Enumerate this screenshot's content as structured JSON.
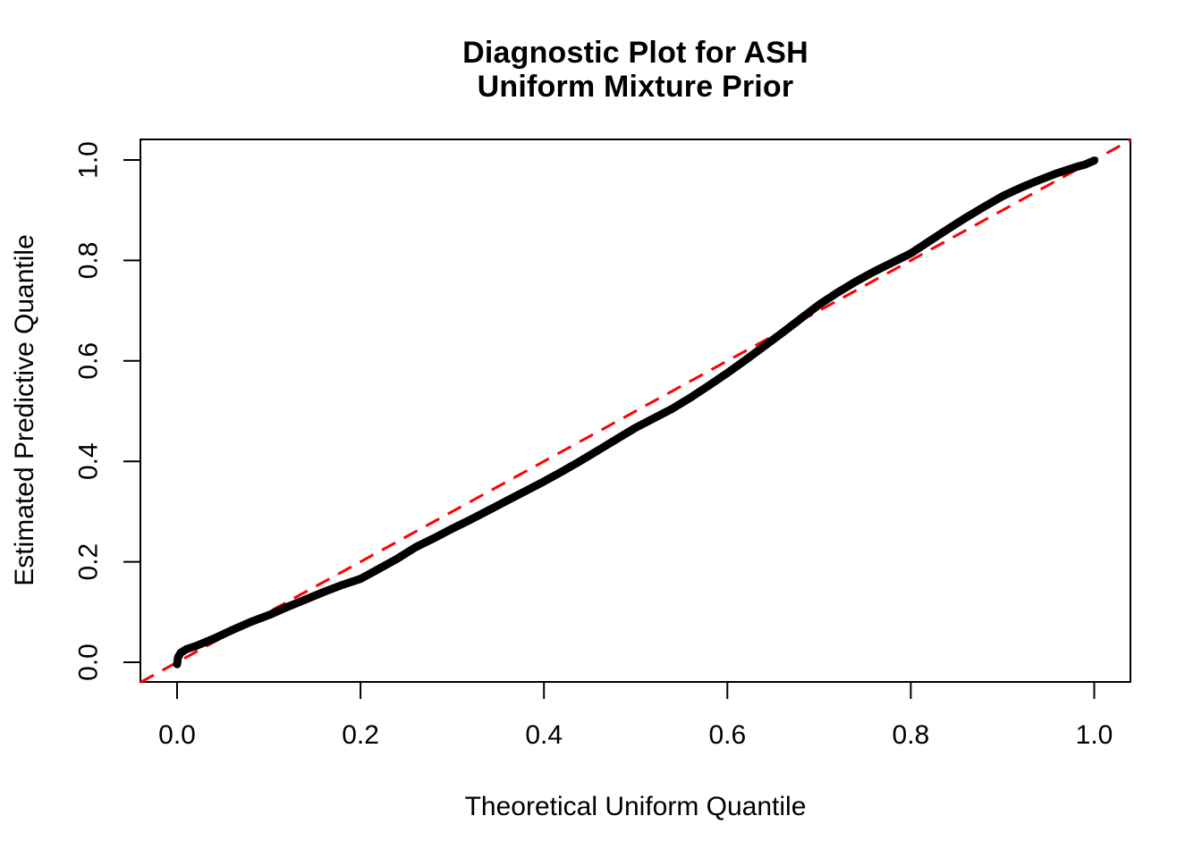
{
  "figure": {
    "background": "#ffffff",
    "curve_color": "#000000",
    "reference_line_color": "#FF0000",
    "axis_color": "#000000"
  },
  "chart_data": {
    "type": "line",
    "title_lines": [
      "Diagnostic Plot for ASH",
      "Uniform Mixture Prior"
    ],
    "xlabel": "Theoretical Uniform Quantile",
    "ylabel": "Estimated Predictive Quantile",
    "xlim": [
      -0.04,
      1.04
    ],
    "ylim": [
      -0.04,
      1.04
    ],
    "grid": false,
    "legend": "none",
    "x_ticks": [
      0.0,
      0.2,
      0.4,
      0.6,
      0.8,
      1.0
    ],
    "x_tick_labels": [
      "0.0",
      "0.2",
      "0.4",
      "0.6",
      "0.8",
      "1.0"
    ],
    "y_ticks": [
      0.0,
      0.2,
      0.4,
      0.6,
      0.8,
      1.0
    ],
    "y_tick_labels": [
      "0.0",
      "0.2",
      "0.4",
      "0.6",
      "0.8",
      "1.0"
    ],
    "series": [
      {
        "name": "estimated-predictive-quantiles",
        "type": "line",
        "style": "solid-thick",
        "color": "#000000",
        "points": [
          [
            0.0,
            -0.004
          ],
          [
            0.001,
            0.01
          ],
          [
            0.004,
            0.019
          ],
          [
            0.01,
            0.026
          ],
          [
            0.02,
            0.032
          ],
          [
            0.04,
            0.047
          ],
          [
            0.06,
            0.064
          ],
          [
            0.08,
            0.08
          ],
          [
            0.1,
            0.094
          ],
          [
            0.12,
            0.11
          ],
          [
            0.14,
            0.125
          ],
          [
            0.16,
            0.14
          ],
          [
            0.18,
            0.154
          ],
          [
            0.2,
            0.166
          ],
          [
            0.22,
            0.186
          ],
          [
            0.24,
            0.206
          ],
          [
            0.26,
            0.229
          ],
          [
            0.28,
            0.247
          ],
          [
            0.3,
            0.266
          ],
          [
            0.32,
            0.284
          ],
          [
            0.34,
            0.303
          ],
          [
            0.36,
            0.322
          ],
          [
            0.38,
            0.341
          ],
          [
            0.4,
            0.36
          ],
          [
            0.42,
            0.38
          ],
          [
            0.44,
            0.401
          ],
          [
            0.46,
            0.423
          ],
          [
            0.48,
            0.445
          ],
          [
            0.5,
            0.467
          ],
          [
            0.52,
            0.486
          ],
          [
            0.54,
            0.505
          ],
          [
            0.56,
            0.527
          ],
          [
            0.58,
            0.551
          ],
          [
            0.6,
            0.576
          ],
          [
            0.62,
            0.602
          ],
          [
            0.64,
            0.629
          ],
          [
            0.66,
            0.656
          ],
          [
            0.68,
            0.684
          ],
          [
            0.7,
            0.712
          ],
          [
            0.72,
            0.736
          ],
          [
            0.74,
            0.758
          ],
          [
            0.76,
            0.778
          ],
          [
            0.78,
            0.796
          ],
          [
            0.8,
            0.814
          ],
          [
            0.82,
            0.838
          ],
          [
            0.84,
            0.862
          ],
          [
            0.86,
            0.885
          ],
          [
            0.88,
            0.907
          ],
          [
            0.9,
            0.928
          ],
          [
            0.92,
            0.945
          ],
          [
            0.94,
            0.96
          ],
          [
            0.96,
            0.974
          ],
          [
            0.98,
            0.986
          ],
          [
            0.99,
            0.991
          ],
          [
            1.0,
            0.999
          ]
        ]
      },
      {
        "name": "reference-diagonal",
        "type": "line",
        "style": "dashed",
        "color": "#FF0000",
        "points": [
          [
            -0.04,
            -0.04
          ],
          [
            1.04,
            1.04
          ]
        ]
      }
    ]
  }
}
